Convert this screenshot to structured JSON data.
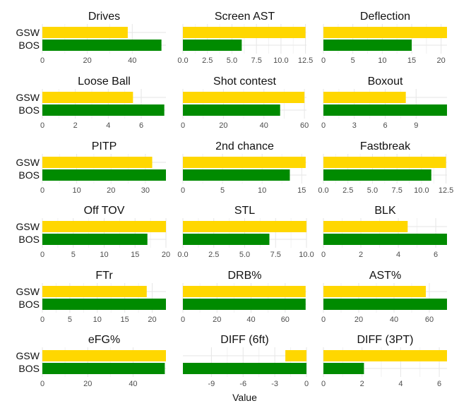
{
  "chart_data": {
    "type": "bar",
    "orientation": "horizontal",
    "xlabel": "Value",
    "categories": [
      "GSW",
      "BOS"
    ],
    "colors": {
      "GSW": "#FFD700",
      "BOS": "#008B00"
    },
    "panels": [
      {
        "title": "Drives",
        "values": {
          "GSW": 38,
          "BOS": 53
        },
        "xlim": [
          0,
          55
        ],
        "ticks": [
          0,
          20,
          40
        ],
        "tick_labels": [
          "0",
          "20",
          "40"
        ]
      },
      {
        "title": "Screen AST",
        "values": {
          "GSW": 12.5,
          "BOS": 6
        },
        "xlim": [
          0,
          12.6
        ],
        "ticks": [
          0,
          2.5,
          5,
          7.5,
          10,
          12.5
        ],
        "tick_labels": [
          "0.0",
          "2.5",
          "5.0",
          "7.5",
          "10.0",
          "12.5"
        ]
      },
      {
        "title": "Deflection",
        "values": {
          "GSW": 21,
          "BOS": 15
        },
        "xlim": [
          0,
          21
        ],
        "ticks": [
          0,
          5,
          10,
          15,
          20
        ],
        "tick_labels": [
          "0",
          "5",
          "10",
          "15",
          "20"
        ]
      },
      {
        "title": "Loose Ball",
        "values": {
          "GSW": 5.5,
          "BOS": 7.4
        },
        "xlim": [
          0,
          7.5
        ],
        "ticks": [
          0,
          2,
          4,
          6
        ],
        "tick_labels": [
          "0",
          "2",
          "4",
          "6"
        ]
      },
      {
        "title": "Shot contest",
        "values": {
          "GSW": 60,
          "BOS": 48
        },
        "xlim": [
          0,
          61
        ],
        "ticks": [
          0,
          20,
          40,
          60
        ],
        "tick_labels": [
          "0",
          "20",
          "40",
          "60"
        ]
      },
      {
        "title": "Boxout",
        "values": {
          "GSW": 8,
          "BOS": 12
        },
        "xlim": [
          0,
          12
        ],
        "ticks": [
          0,
          3,
          6,
          9
        ],
        "tick_labels": [
          "0",
          "3",
          "6",
          "9"
        ]
      },
      {
        "title": "PITP",
        "values": {
          "GSW": 32,
          "BOS": 36
        },
        "xlim": [
          0,
          36
        ],
        "ticks": [
          0,
          10,
          20,
          30
        ],
        "tick_labels": [
          "0",
          "10",
          "20",
          "30"
        ]
      },
      {
        "title": "2nd chance",
        "values": {
          "GSW": 15.5,
          "BOS": 13.5
        },
        "xlim": [
          0,
          15.6
        ],
        "ticks": [
          0,
          5,
          10,
          15
        ],
        "tick_labels": [
          "0",
          "5",
          "10",
          "15"
        ]
      },
      {
        "title": "Fastbreak",
        "values": {
          "GSW": 12.5,
          "BOS": 11
        },
        "xlim": [
          0,
          12.6
        ],
        "ticks": [
          0,
          2.5,
          5,
          7.5,
          10,
          12.5
        ],
        "tick_labels": [
          "0.0",
          "2.5",
          "5.0",
          "7.5",
          "10.0",
          "12.5"
        ]
      },
      {
        "title": "Off TOV",
        "values": {
          "GSW": 20,
          "BOS": 17
        },
        "xlim": [
          0,
          20
        ],
        "ticks": [
          0,
          5,
          10,
          15,
          20
        ],
        "tick_labels": [
          "0",
          "5",
          "10",
          "15",
          "20"
        ]
      },
      {
        "title": "STL",
        "values": {
          "GSW": 10,
          "BOS": 7
        },
        "xlim": [
          0,
          10
        ],
        "ticks": [
          0,
          2.5,
          5,
          7.5,
          10
        ],
        "tick_labels": [
          "0.0",
          "2.5",
          "5.0",
          "7.5",
          "10.0"
        ]
      },
      {
        "title": "BLK",
        "values": {
          "GSW": 4.5,
          "BOS": 6.6
        },
        "xlim": [
          0,
          6.6
        ],
        "ticks": [
          0,
          2,
          4,
          6
        ],
        "tick_labels": [
          "0",
          "2",
          "4",
          "6"
        ]
      },
      {
        "title": "FTr",
        "values": {
          "GSW": 19,
          "BOS": 22.5
        },
        "xlim": [
          0,
          22.5
        ],
        "ticks": [
          0,
          5,
          10,
          15,
          20
        ],
        "tick_labels": [
          "0",
          "5",
          "10",
          "15",
          "20"
        ]
      },
      {
        "title": "DRB%",
        "values": {
          "GSW": 72,
          "BOS": 72
        },
        "xlim": [
          0,
          72.5
        ],
        "ticks": [
          0,
          20,
          40,
          60
        ],
        "tick_labels": [
          "0",
          "20",
          "40",
          "60"
        ]
      },
      {
        "title": "AST%",
        "values": {
          "GSW": 58,
          "BOS": 70
        },
        "xlim": [
          0,
          70
        ],
        "ticks": [
          0,
          20,
          40,
          60
        ],
        "tick_labels": [
          "0",
          "20",
          "40",
          "60"
        ]
      },
      {
        "title": "eFG%",
        "values": {
          "GSW": 54.5,
          "BOS": 54
        },
        "xlim": [
          0,
          54.5
        ],
        "ticks": [
          0,
          20,
          40
        ],
        "tick_labels": [
          "0",
          "20",
          "40"
        ]
      },
      {
        "title": "DIFF (6ft)",
        "values": {
          "GSW": -2,
          "BOS": -11.7
        },
        "xlim": [
          -11.7,
          0
        ],
        "ticks": [
          -9,
          -6,
          -3,
          0
        ],
        "tick_labels": [
          "-9",
          "-6",
          "-3",
          "0"
        ]
      },
      {
        "title": "DIFF (3PT)",
        "values": {
          "GSW": 6.4,
          "BOS": 2.1
        },
        "xlim": [
          0,
          6.4
        ],
        "ticks": [
          0,
          2,
          4,
          6
        ],
        "tick_labels": [
          "0",
          "2",
          "4",
          "6"
        ]
      }
    ]
  }
}
